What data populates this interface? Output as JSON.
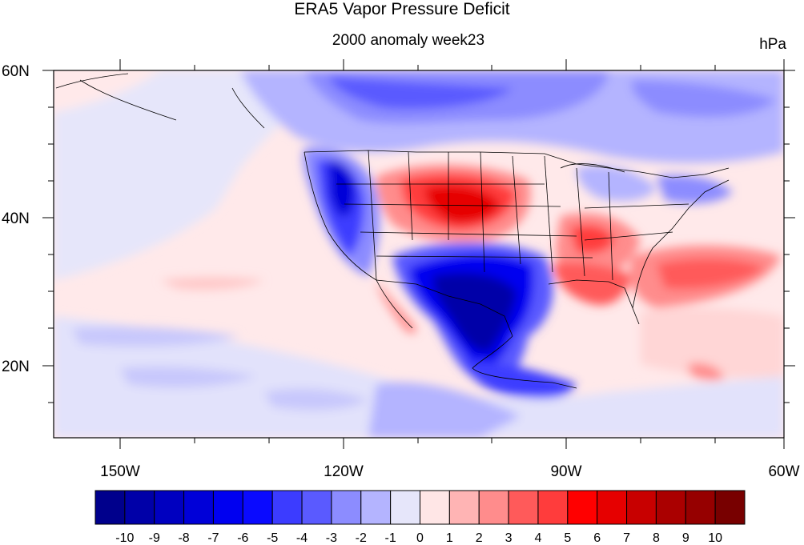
{
  "title": "ERA5 Vapor Pressure Deficit",
  "subtitle": "2000 anomaly week23",
  "units": "hPa",
  "map": {
    "lat_labels": [
      "60N",
      "40N",
      "20N"
    ],
    "lon_labels": [
      "150W",
      "120W",
      "90W",
      "60W"
    ],
    "lat_range": [
      10,
      60
    ],
    "lon_range": [
      -160,
      -60
    ]
  },
  "colorbar": {
    "labels": [
      "-10",
      "-9",
      "-8",
      "-7",
      "-6",
      "-5",
      "-4",
      "-3",
      "-2",
      "-1",
      "0",
      "1",
      "2",
      "3",
      "4",
      "5",
      "6",
      "7",
      "8",
      "9",
      "10"
    ],
    "colors": [
      "#00008c",
      "#0000a8",
      "#0000c0",
      "#0000d8",
      "#0000f0",
      "#0a0aff",
      "#3c3cff",
      "#5a5aff",
      "#8c8cff",
      "#b4b4ff",
      "#e6e6fa",
      "#ffe6e6",
      "#ffb4b4",
      "#ff8c8c",
      "#ff5a5a",
      "#ff3c3c",
      "#ff0000",
      "#e60000",
      "#c80000",
      "#aa0000",
      "#960000",
      "#780000"
    ]
  }
}
